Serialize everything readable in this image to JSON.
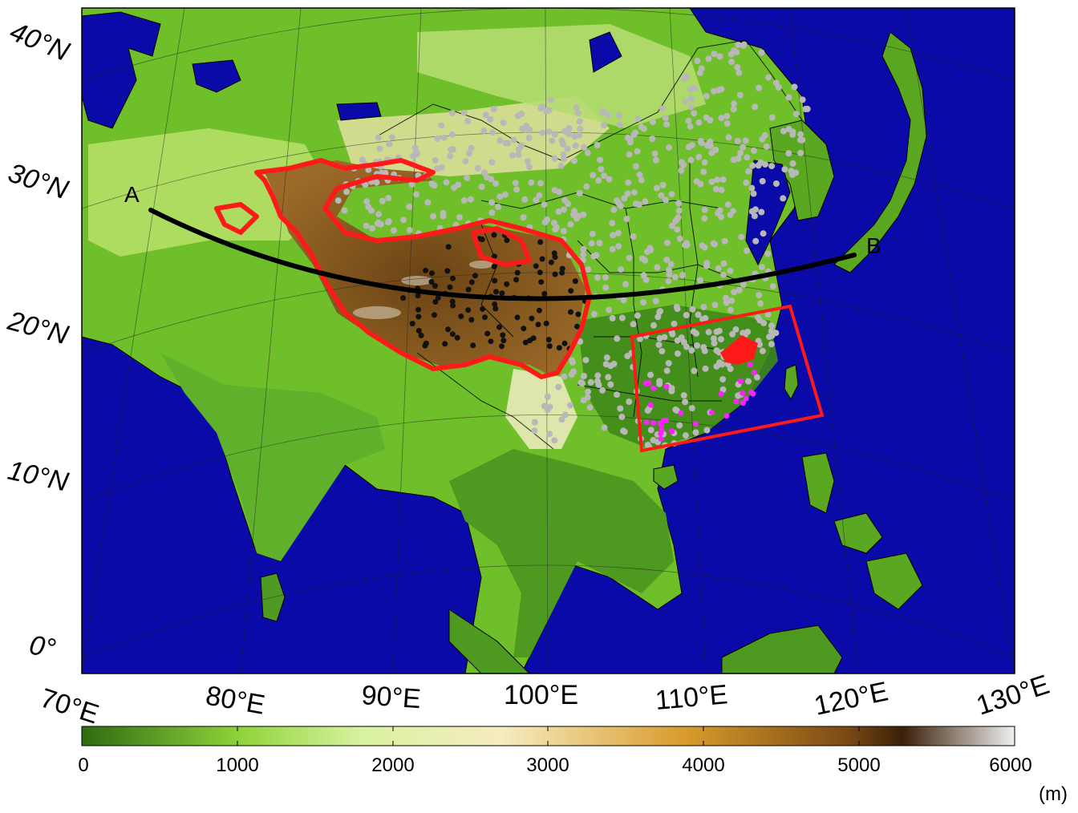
{
  "map": {
    "lat_labels": [
      "40°N",
      "30°N",
      "20°N",
      "10°N",
      "0°"
    ],
    "lon_labels": [
      "70°E",
      "80°E",
      "90°E",
      "100°E",
      "110°E",
      "120°E",
      "130°E"
    ],
    "transect_start_label": "A",
    "transect_end_label": "B",
    "colors": {
      "ocean": "#0a0aa8",
      "tp_boundary": "#ff1a1a",
      "transect": "#000000",
      "station_gray": "#b8b8b8",
      "station_black": "#111111",
      "station_magenta": "#ff22ff"
    }
  },
  "colorbar": {
    "ticks": [
      "0",
      "1000",
      "2000",
      "3000",
      "4000",
      "5000",
      "6000"
    ],
    "unit": "(m)",
    "stops": [
      "#2f6b12",
      "#8fd43a",
      "#d8f2a0",
      "#f6ecc0",
      "#d79a2a",
      "#7a4a14",
      "#3a2008",
      "#f0f0f0"
    ]
  }
}
